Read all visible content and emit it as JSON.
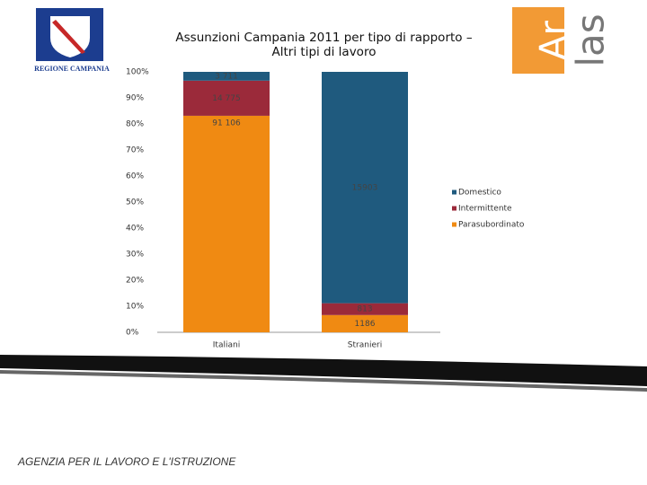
{
  "chart_data": {
    "type": "bar",
    "stacking": "percent",
    "title": "Assunzioni Campania 2011 per tipo di rapporto – Altri tipi di lavoro",
    "categories": [
      "Italiani",
      "Stranieri"
    ],
    "series": [
      {
        "name": "Domestico",
        "color": "#1f5a7e",
        "values": [
          3711,
          15903
        ],
        "value_labels": [
          "3 711",
          "15903"
        ]
      },
      {
        "name": "Intermittente",
        "color": "#9b2a3a",
        "values": [
          14775,
          813
        ],
        "value_labels": [
          "14 775",
          "813"
        ]
      },
      {
        "name": "Parasubordinato",
        "color": "#f08a12",
        "values": [
          91106,
          1186
        ],
        "value_labels": [
          "91 106",
          "1186"
        ]
      }
    ],
    "ylim": [
      0,
      100
    ],
    "yticks": [
      {
        "value": 0,
        "label": "0%"
      },
      {
        "value": 10,
        "label": "10%"
      },
      {
        "value": 20,
        "label": "20%"
      },
      {
        "value": 30,
        "label": "30%"
      },
      {
        "value": 40,
        "label": "40%"
      },
      {
        "value": 50,
        "label": "50%"
      },
      {
        "value": 60,
        "label": "60%"
      },
      {
        "value": 70,
        "label": "70%"
      },
      {
        "value": 80,
        "label": "80%"
      },
      {
        "value": 90,
        "label": "90%"
      },
      {
        "value": 100,
        "label": "100%"
      }
    ],
    "grid": false,
    "legend": "right"
  },
  "logos": {
    "left": "REGIONE CAMPANIA",
    "right": [
      "Ar",
      "las"
    ]
  },
  "footer": "AGENZIA PER IL LAVORO E L'ISTRUZIONE"
}
